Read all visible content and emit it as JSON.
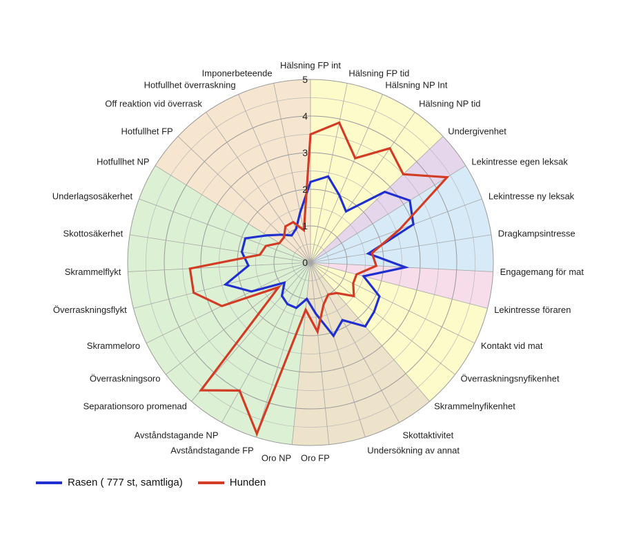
{
  "chart_data": {
    "type": "radar",
    "rmax": 5,
    "ticks": [
      0,
      1,
      2,
      3,
      4,
      5
    ],
    "categories": [
      "Hälsning FP int",
      "Hälsning FP tid",
      "Hälsning NP Int",
      "Hälsning NP tid",
      "Undergivenhet",
      "Lekintresse egen leksak",
      "Lekintresse ny leksak",
      "Dragkampsintresse",
      "Engagemang för mat",
      "Lekintresse föraren",
      "Kontakt vid mat",
      "Överraskningsnyfikenhet",
      "Skrammelnyfikenhet",
      "Skottaktivitet",
      "Undersökning av annat",
      "Oro FP",
      "Oro NP",
      "Avståndstagande FP",
      "Avståndstagande NP",
      "Separationsoro promenad",
      "Överraskningsoro",
      "Skrammeloro",
      "Överraskningsflykt",
      "Skrammelflykt",
      "Skottosäkerhet",
      "Underlagsosäkerhet",
      "Hotfullhet NP",
      "Hotfullhet FP",
      "Off reaktion vid överrask",
      "Hotfullhet överraskning",
      "Imponerbeteende"
    ],
    "sectors": [
      {
        "from": 0,
        "to": 4,
        "color": "#fdfbc9"
      },
      {
        "from": 4,
        "to": 5,
        "color": "#e6d6ec"
      },
      {
        "from": 5,
        "to": 8,
        "color": "#d7eaf7"
      },
      {
        "from": 8,
        "to": 9,
        "color": "#f6dde9"
      },
      {
        "from": 9,
        "to": 12,
        "color": "#fdfbc9"
      },
      {
        "from": 12,
        "to": 16,
        "color": "#ede3cb"
      },
      {
        "from": 16,
        "to": 26,
        "color": "#dcf0d4"
      },
      {
        "from": 26,
        "to": 31,
        "color": "#f6e6cf"
      }
    ],
    "series": [
      {
        "name": "Rasen ( 777 st, samtliga)",
        "color": "#1f2fd0",
        "values": [
          2.2,
          2.4,
          2.0,
          1.7,
          2.8,
          3.2,
          3.0,
          1.6,
          2.6,
          1.5,
          2.1,
          2.2,
          2.3,
          1.8,
          2.1,
          1.4,
          1.0,
          1.3,
          1.3,
          1.2,
          0.9,
          1.8,
          2.4,
          1.7,
          1.9,
          1.9,
          1.4,
          1.1,
          0.9,
          1.0,
          1.4
        ]
      },
      {
        "name": "Hunden",
        "color": "#d33c24",
        "values": [
          3.5,
          3.9,
          3.1,
          3.8,
          3.5,
          4.4,
          2.6,
          1.7,
          1.8,
          1.3,
          1.3,
          1.5,
          1.1,
          1.0,
          1.2,
          1.9,
          1.3,
          4.9,
          4.0,
          4.6,
          1.1,
          2.7,
          3.3,
          3.3,
          1.4,
          1.3,
          1.0,
          1.0,
          1.2,
          1.2,
          0.9
        ]
      }
    ]
  },
  "legend": {
    "series_1": "Rasen ( 777 st, samtliga)",
    "series_2": "Hunden"
  }
}
